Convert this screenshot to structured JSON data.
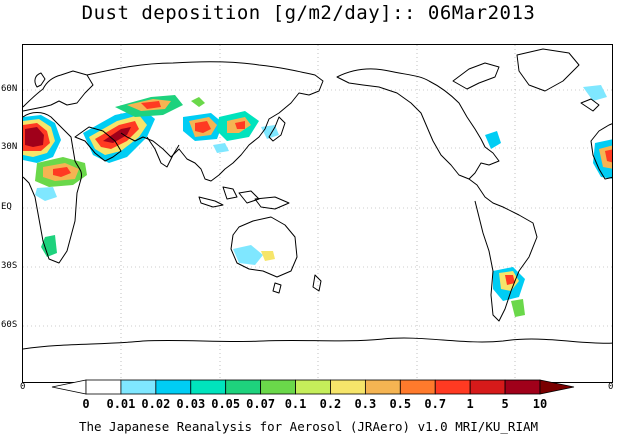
{
  "title": "Dust deposition [g/m2/day]:: 06Mar2013",
  "credit": "The Japanese Reanalysis for Aerosol (JRAero) v1.0 MRI/KU_RIAM",
  "lat_labels": [
    "60N",
    "30N",
    "EQ",
    "30S",
    "60S"
  ],
  "edge_left": "0",
  "edge_right": "0",
  "colorbar": {
    "labels": [
      "0",
      "0.01",
      "0.02",
      "0.03",
      "0.05",
      "0.07",
      "0.1",
      "0.2",
      "0.3",
      "0.5",
      "0.7",
      "1",
      "5",
      "10"
    ],
    "colors": [
      "#ffffff",
      "#ffffff",
      "#7fe7ff",
      "#00cdf4",
      "#00e3bd",
      "#1ed27d",
      "#6ad84a",
      "#c5ee5a",
      "#f6e56a",
      "#f5b452",
      "#ff7a2c",
      "#ff3a22",
      "#d61a1a",
      "#a0001a",
      "#7a0000"
    ]
  },
  "map": {
    "projection": "equirectangular, centered 180",
    "grid": "dotted 60 deg longitude / 30 deg latitude",
    "land_color": "#ffffff",
    "coastline_color": "#000000"
  }
}
